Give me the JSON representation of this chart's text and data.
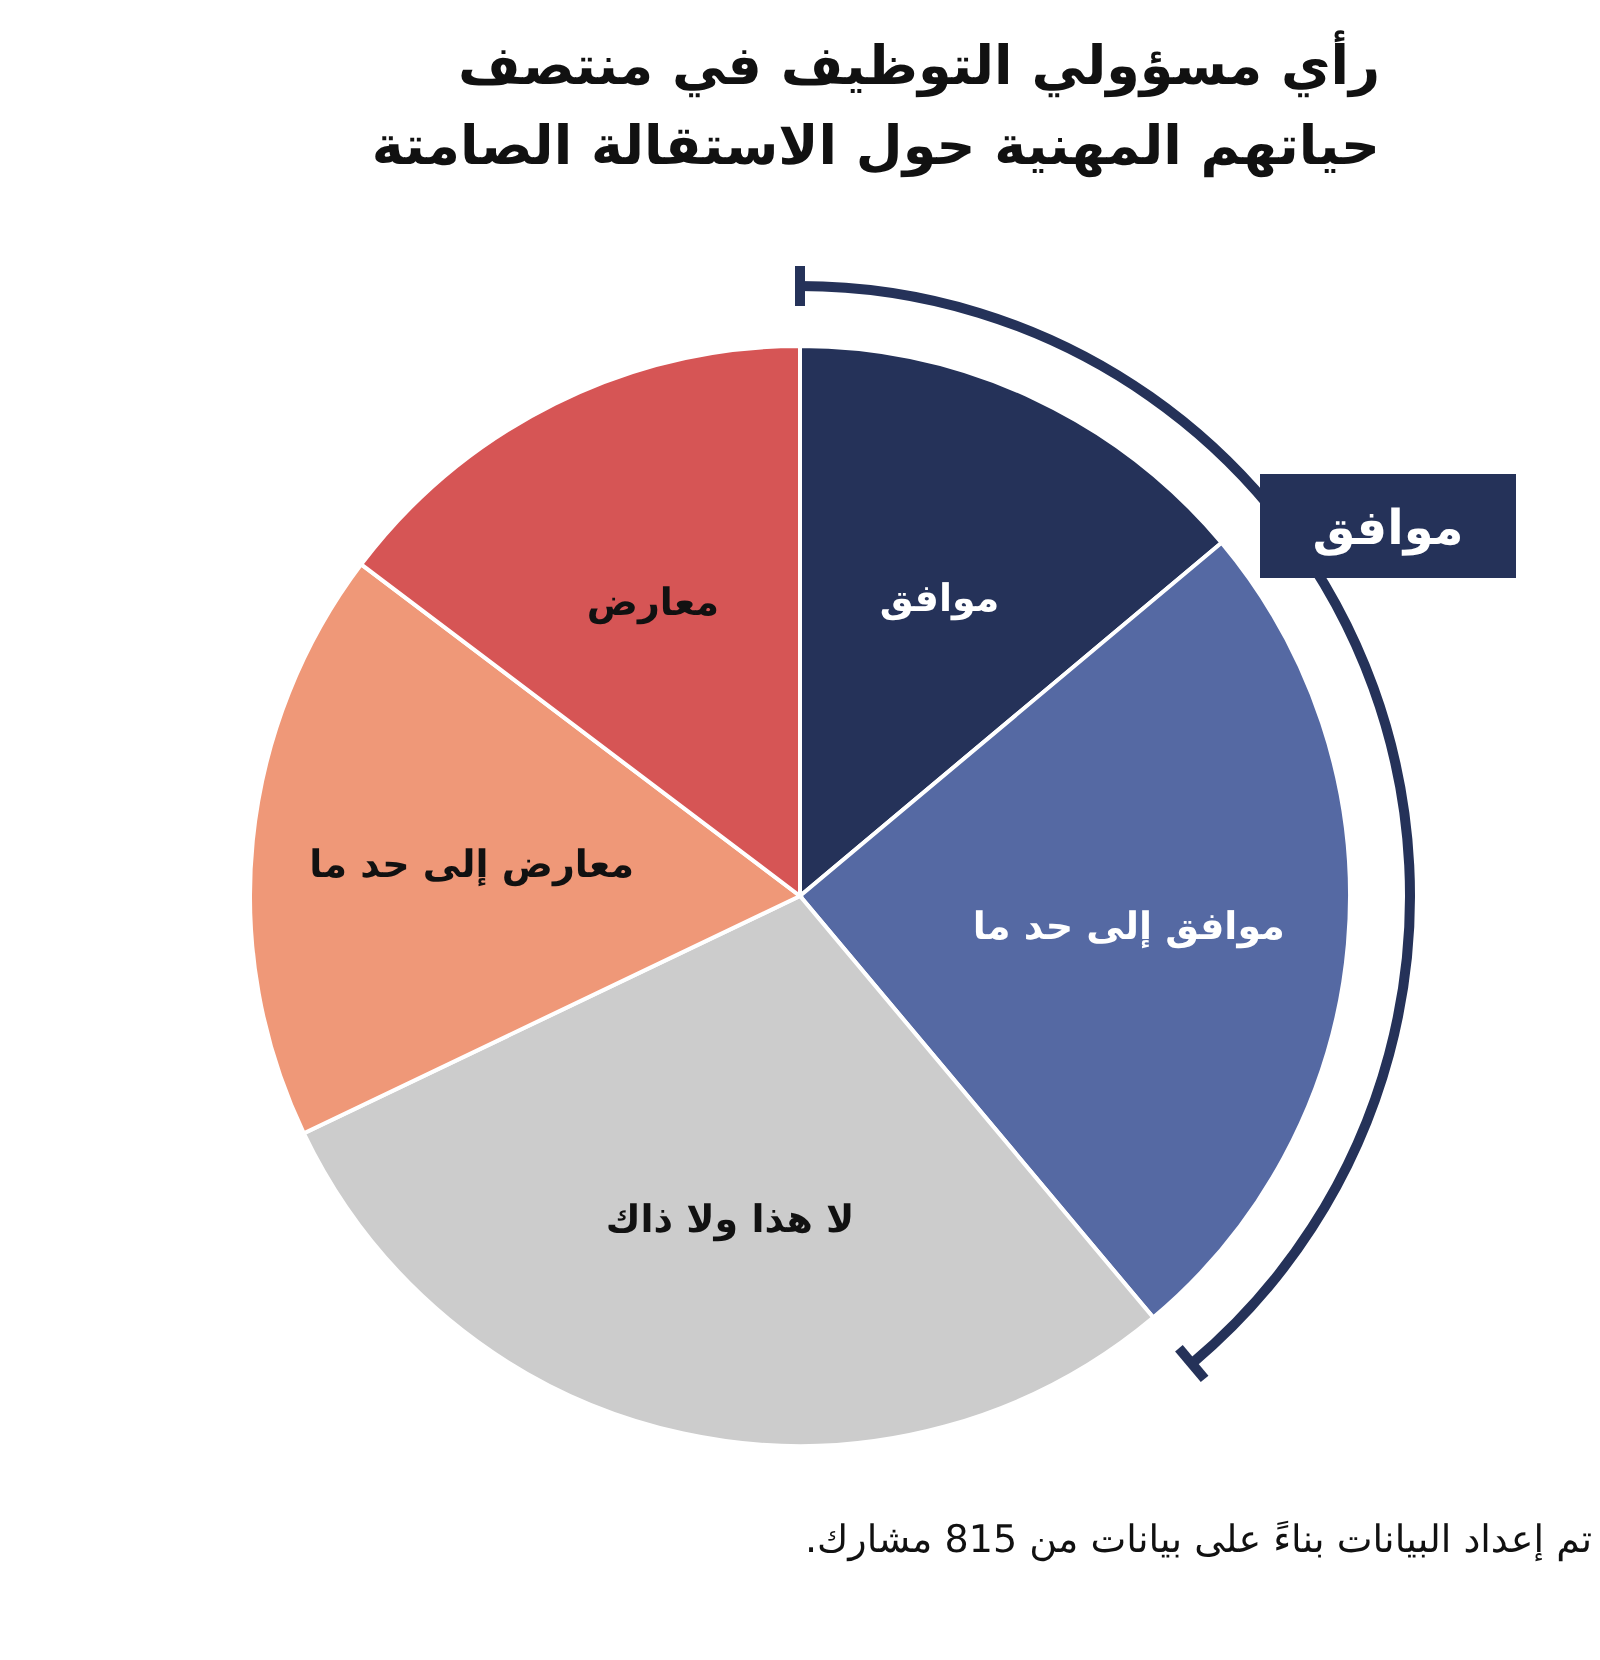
{
  "chart_data": {
    "type": "pie",
    "title": "رأي مسؤولي التوظيف في منتصف حياتهم المهنية حول الاستقالة الصامتة",
    "categories": [
      "موافق",
      "موافق إلى حد ما",
      "لا هذا ولا ذاك",
      "معارض إلى حد ما",
      "معارض"
    ],
    "values": [
      13.9,
      25.0,
      29.0,
      17.4,
      14.7
    ],
    "colors": [
      "#253259",
      "#5569a3",
      "#cccccc",
      "#ef9878",
      "#d65555"
    ],
    "annotations": [
      "موافق",
      "تم إعداد البيانات بناءً على بيانات من 815 مشارك."
    ]
  }
}
